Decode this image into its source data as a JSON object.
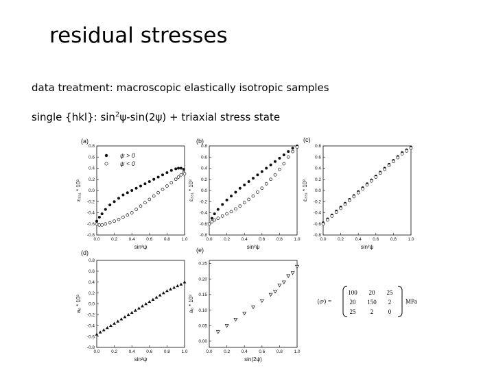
{
  "slide": {
    "title": "residual stresses",
    "line1": "data treatment: macroscopic elastically isotropic samples",
    "line2_prefix": "single {hkl}: sin",
    "line2_sup": "2",
    "line2_suffix": "ψ-sin(2ψ) + triaxial stress state"
  },
  "chart_data": [
    {
      "id": "a",
      "type": "scatter",
      "label": "(a)",
      "xlabel": "sin²ψ",
      "ylabel": "ε₃₃₁ * 10³",
      "xlim": [
        0,
        1
      ],
      "ylim": [
        -0.8,
        0.8
      ],
      "xticks": [
        "0.0",
        "0.2",
        "0.4",
        "0.6",
        "0.8",
        "1.0"
      ],
      "yticks": [
        "-0.8",
        "-0.6",
        "-0.4",
        "-0.2",
        "0.0",
        "0.2",
        "0.4",
        "0.6",
        "0.8"
      ],
      "legend": [
        "ψ > 0",
        "ψ < 0"
      ],
      "series": [
        {
          "name": "ψ > 0",
          "marker": "filled-circle",
          "x": [
            0.0,
            0.03,
            0.06,
            0.1,
            0.15,
            0.2,
            0.25,
            0.3,
            0.35,
            0.4,
            0.45,
            0.5,
            0.55,
            0.6,
            0.65,
            0.7,
            0.75,
            0.8,
            0.85,
            0.9,
            0.93,
            0.96,
            0.99,
            1.0
          ],
          "y": [
            -0.55,
            -0.48,
            -0.42,
            -0.34,
            -0.26,
            -0.2,
            -0.14,
            -0.08,
            -0.04,
            0.0,
            0.04,
            0.08,
            0.12,
            0.16,
            0.2,
            0.24,
            0.28,
            0.32,
            0.36,
            0.39,
            0.4,
            0.4,
            0.38,
            0.3
          ]
        },
        {
          "name": "ψ < 0",
          "marker": "open-circle",
          "x": [
            0.0,
            0.03,
            0.06,
            0.1,
            0.15,
            0.2,
            0.25,
            0.3,
            0.35,
            0.4,
            0.45,
            0.5,
            0.55,
            0.6,
            0.65,
            0.7,
            0.75,
            0.8,
            0.85,
            0.9,
            0.93,
            0.96,
            0.99,
            1.0
          ],
          "y": [
            -0.6,
            -0.62,
            -0.62,
            -0.6,
            -0.58,
            -0.55,
            -0.52,
            -0.48,
            -0.44,
            -0.4,
            -0.34,
            -0.28,
            -0.22,
            -0.16,
            -0.1,
            -0.04,
            0.02,
            0.08,
            0.14,
            0.2,
            0.24,
            0.28,
            0.32,
            0.3
          ]
        }
      ]
    },
    {
      "id": "b",
      "type": "scatter",
      "label": "(b)",
      "xlabel": "sin²ψ",
      "ylabel": "ε₃₃₁ * 10³",
      "xlim": [
        0,
        1
      ],
      "ylim": [
        -0.8,
        0.8
      ],
      "xticks": [
        "0.0",
        "0.2",
        "0.4",
        "0.6",
        "0.8",
        "1.0"
      ],
      "yticks": [
        "-0.8",
        "-0.6",
        "-0.4",
        "-0.2",
        "0.0",
        "0.2",
        "0.4",
        "0.6",
        "0.8"
      ],
      "series": [
        {
          "name": "ψ > 0",
          "marker": "filled-circle",
          "x": [
            0.0,
            0.03,
            0.06,
            0.1,
            0.15,
            0.2,
            0.25,
            0.3,
            0.35,
            0.4,
            0.45,
            0.5,
            0.55,
            0.6,
            0.65,
            0.7,
            0.75,
            0.8,
            0.85,
            0.9,
            0.95,
            1.0
          ],
          "y": [
            -0.6,
            -0.5,
            -0.42,
            -0.34,
            -0.25,
            -0.17,
            -0.1,
            -0.03,
            0.04,
            0.1,
            0.16,
            0.22,
            0.28,
            0.34,
            0.4,
            0.46,
            0.52,
            0.58,
            0.64,
            0.7,
            0.76,
            0.8
          ]
        },
        {
          "name": "ψ < 0",
          "marker": "open-circle",
          "x": [
            0.0,
            0.03,
            0.06,
            0.1,
            0.15,
            0.2,
            0.25,
            0.3,
            0.35,
            0.4,
            0.45,
            0.5,
            0.55,
            0.6,
            0.65,
            0.7,
            0.75,
            0.8,
            0.85,
            0.9,
            0.95,
            1.0
          ],
          "y": [
            -0.6,
            -0.56,
            -0.53,
            -0.5,
            -0.46,
            -0.42,
            -0.38,
            -0.33,
            -0.28,
            -0.22,
            -0.16,
            -0.1,
            -0.03,
            0.04,
            0.12,
            0.2,
            0.28,
            0.38,
            0.48,
            0.6,
            0.7,
            0.78
          ]
        }
      ]
    },
    {
      "id": "c",
      "type": "scatter",
      "label": "(c)",
      "xlabel": "sin²ψ",
      "ylabel": "ε₃₃₁ * 10³",
      "xlim": [
        0,
        1
      ],
      "ylim": [
        -0.8,
        0.8
      ],
      "xticks": [
        "0.0",
        "0.2",
        "0.4",
        "0.6",
        "0.8",
        "1.0"
      ],
      "yticks": [
        "-0.8",
        "-0.6",
        "-0.4",
        "-0.2",
        "0.0",
        "0.2",
        "0.4",
        "0.6",
        "0.8"
      ],
      "series": [
        {
          "name": "ψ > 0",
          "marker": "filled-circle",
          "x": [
            0.0,
            0.05,
            0.1,
            0.15,
            0.2,
            0.25,
            0.3,
            0.35,
            0.4,
            0.45,
            0.5,
            0.55,
            0.6,
            0.65,
            0.7,
            0.75,
            0.8,
            0.85,
            0.9,
            0.95,
            1.0
          ],
          "y": [
            -0.58,
            -0.51,
            -0.44,
            -0.37,
            -0.3,
            -0.23,
            -0.16,
            -0.09,
            -0.02,
            0.05,
            0.12,
            0.19,
            0.26,
            0.33,
            0.4,
            0.47,
            0.54,
            0.61,
            0.68,
            0.73,
            0.78
          ]
        },
        {
          "name": "ψ < 0",
          "marker": "open-circle",
          "x": [
            0.0,
            0.05,
            0.1,
            0.15,
            0.2,
            0.25,
            0.3,
            0.35,
            0.4,
            0.45,
            0.5,
            0.55,
            0.6,
            0.65,
            0.7,
            0.75,
            0.8,
            0.85,
            0.9,
            0.95,
            1.0
          ],
          "y": [
            -0.6,
            -0.53,
            -0.46,
            -0.39,
            -0.32,
            -0.25,
            -0.18,
            -0.11,
            -0.04,
            0.03,
            0.1,
            0.17,
            0.24,
            0.31,
            0.38,
            0.45,
            0.52,
            0.59,
            0.66,
            0.71,
            0.76
          ]
        }
      ]
    },
    {
      "id": "d",
      "type": "scatter",
      "label": "(d)",
      "xlabel": "sin²ψ",
      "ylabel": "a₀ * 10³",
      "xlim": [
        0,
        1
      ],
      "ylim": [
        -0.8,
        0.8
      ],
      "xticks": [
        "0.0",
        "0.2",
        "0.4",
        "0.6",
        "0.8",
        "1.0"
      ],
      "yticks": [
        "-0.8",
        "-0.6",
        "-0.4",
        "-0.2",
        "0.0",
        "0.2",
        "0.4",
        "0.6",
        "0.8"
      ],
      "series": [
        {
          "name": "d",
          "marker": "filled-triangle",
          "x": [
            0.0,
            0.04,
            0.08,
            0.12,
            0.16,
            0.2,
            0.24,
            0.28,
            0.32,
            0.36,
            0.4,
            0.44,
            0.48,
            0.52,
            0.56,
            0.6,
            0.64,
            0.68,
            0.72,
            0.76,
            0.8,
            0.84,
            0.88,
            0.92,
            0.96,
            1.0
          ],
          "y": [
            -0.56,
            -0.52,
            -0.48,
            -0.44,
            -0.4,
            -0.36,
            -0.32,
            -0.28,
            -0.24,
            -0.2,
            -0.16,
            -0.12,
            -0.08,
            -0.04,
            0.0,
            0.04,
            0.08,
            0.12,
            0.16,
            0.2,
            0.24,
            0.27,
            0.3,
            0.33,
            0.36,
            0.4
          ]
        }
      ]
    },
    {
      "id": "e",
      "type": "scatter",
      "label": "(e)",
      "xlabel": "sin(2ψ)",
      "ylabel": "a₀ * 10³",
      "xlim": [
        0,
        1
      ],
      "ylim": [
        -0.02,
        0.26
      ],
      "xticks": [
        "0.0",
        "0.2",
        "0.4",
        "0.6",
        "0.8",
        "1.0"
      ],
      "yticks": [
        "0.00",
        "0.05",
        "0.10",
        "0.15",
        "0.20",
        "0.25"
      ],
      "series": [
        {
          "name": "e",
          "marker": "open-triangle",
          "x": [
            0.1,
            0.2,
            0.3,
            0.4,
            0.5,
            0.6,
            0.7,
            0.75,
            0.8,
            0.85,
            0.9,
            0.95,
            1.0
          ],
          "y": [
            0.03,
            0.05,
            0.07,
            0.09,
            0.11,
            0.13,
            0.15,
            0.16,
            0.18,
            0.19,
            0.21,
            0.22,
            0.24
          ]
        }
      ]
    }
  ],
  "matrix": {
    "lhs": "⟨σˢ⟩ =",
    "rows": [
      [
        "100",
        "20",
        "25"
      ],
      [
        "20",
        "150",
        "2"
      ],
      [
        "25",
        "2",
        "0"
      ]
    ],
    "unit": "MPa"
  }
}
